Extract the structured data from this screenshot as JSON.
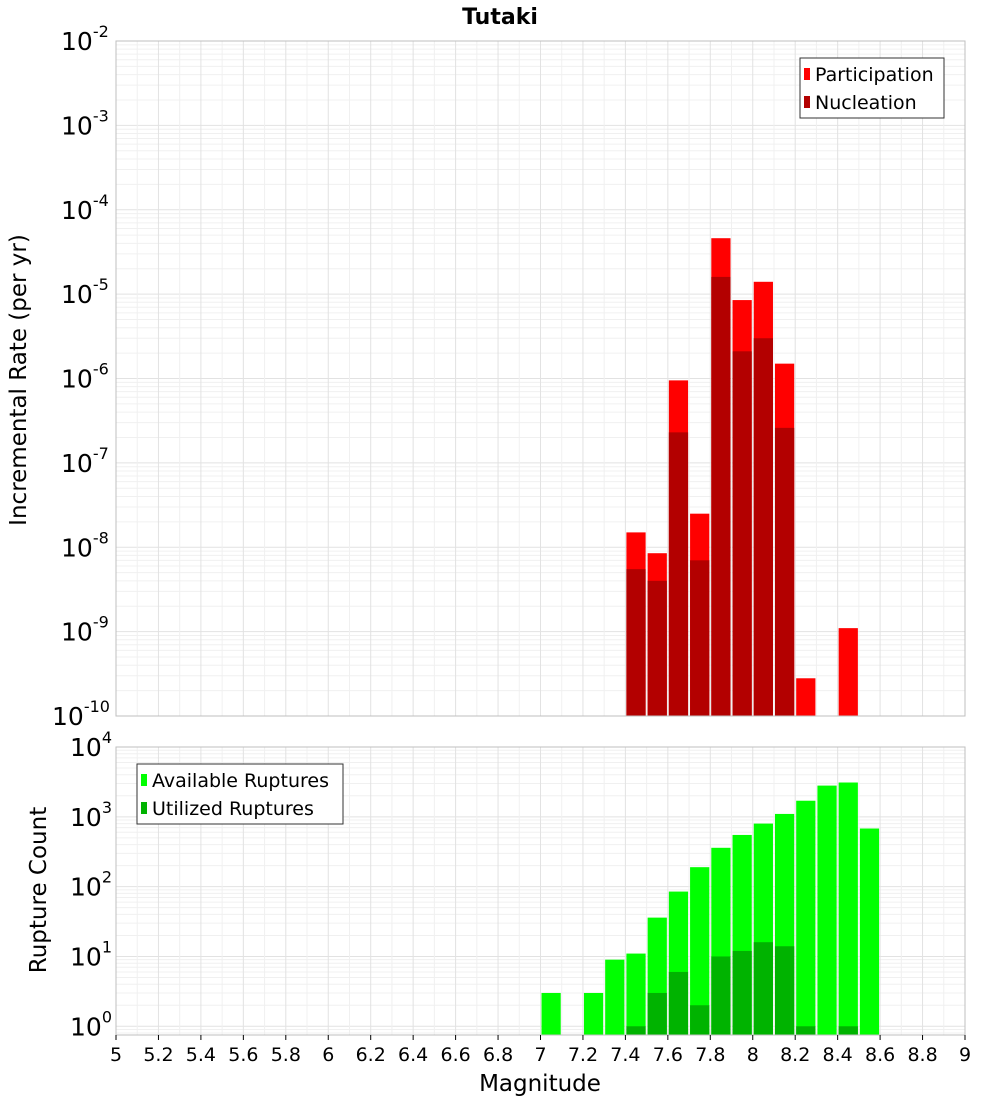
{
  "title": "Tutaki",
  "colors": {
    "participation": "#ff0000",
    "nucleation": "#b30000",
    "available": "#00ff00",
    "utilized": "#00b300",
    "grid": "#e6e6e6",
    "plot_border": "#bfbfbf"
  },
  "chart_data": [
    {
      "type": "bar",
      "scale": "log",
      "ylabel": "Incremental Rate (per yr)",
      "ylim": [
        1e-10,
        0.01
      ],
      "y_tick_exponents": [
        "-10",
        "-9",
        "-8",
        "-7",
        "-6",
        "-5",
        "-4",
        "-3",
        "-2"
      ],
      "bin_width": 0.1,
      "legend": {
        "placement": "top-right",
        "entries": [
          "Participation",
          "Nucleation"
        ]
      },
      "series": [
        {
          "name": "Participation",
          "x": [
            7.45,
            7.55,
            7.65,
            7.75,
            7.85,
            7.95,
            8.05,
            8.15,
            8.25,
            8.45
          ],
          "values": [
            1.5e-08,
            8.5e-09,
            9.5e-07,
            2.5e-08,
            4.6e-05,
            8.5e-06,
            1.4e-05,
            1.5e-06,
            2.8e-10,
            1.1e-09
          ]
        },
        {
          "name": "Nucleation",
          "x": [
            7.45,
            7.55,
            7.65,
            7.75,
            7.85,
            7.95,
            8.05,
            8.15
          ],
          "values": [
            5.5e-09,
            4e-09,
            2.3e-07,
            7e-09,
            1.6e-05,
            2.1e-06,
            3e-06,
            2.6e-07
          ]
        }
      ]
    },
    {
      "type": "bar",
      "scale": "log",
      "ylabel": "Rupture Count",
      "xlabel": "Magnitude",
      "ylim": [
        0.75,
        10000
      ],
      "y_tick_exponents": [
        "0",
        "1",
        "2",
        "3",
        "4"
      ],
      "xlim": [
        5,
        9
      ],
      "x_ticks": [
        "5",
        "5.2",
        "5.4",
        "5.6",
        "5.8",
        "6",
        "6.2",
        "6.4",
        "6.6",
        "6.8",
        "7",
        "7.2",
        "7.4",
        "7.6",
        "7.8",
        "8",
        "8.2",
        "8.4",
        "8.6",
        "8.8",
        "9"
      ],
      "bin_width": 0.1,
      "legend": {
        "placement": "top-left",
        "entries": [
          "Available Ruptures",
          "Utilized Ruptures"
        ]
      },
      "series": [
        {
          "name": "Available Ruptures",
          "x": [
            7.05,
            7.25,
            7.35,
            7.45,
            7.55,
            7.65,
            7.75,
            7.85,
            7.95,
            8.05,
            8.15,
            8.25,
            8.35,
            8.45,
            8.55
          ],
          "values": [
            3,
            3,
            9,
            11,
            36,
            85,
            190,
            360,
            550,
            800,
            1100,
            1700,
            2800,
            3100,
            680
          ]
        },
        {
          "name": "Utilized Ruptures",
          "x": [
            7.45,
            7.55,
            7.65,
            7.75,
            7.85,
            7.95,
            8.05,
            8.15,
            8.25,
            8.45
          ],
          "values": [
            1,
            3,
            6,
            2,
            10,
            12,
            16,
            14,
            1,
            1
          ]
        }
      ]
    }
  ]
}
